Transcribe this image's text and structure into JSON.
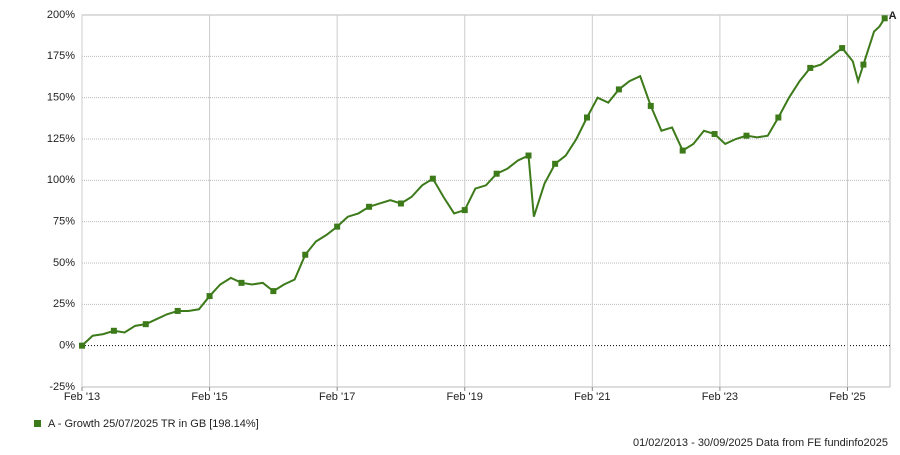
{
  "chart_data": {
    "type": "line",
    "x": [
      "2013-02",
      "2013-04",
      "2013-06",
      "2013-08",
      "2013-10",
      "2013-12",
      "2014-02",
      "2014-04",
      "2014-06",
      "2014-08",
      "2014-10",
      "2014-12",
      "2015-02",
      "2015-04",
      "2015-06",
      "2015-08",
      "2015-10",
      "2015-12",
      "2016-02",
      "2016-04",
      "2016-06",
      "2016-08",
      "2016-10",
      "2016-12",
      "2017-02",
      "2017-04",
      "2017-06",
      "2017-08",
      "2017-10",
      "2017-12",
      "2018-02",
      "2018-04",
      "2018-06",
      "2018-08",
      "2018-10",
      "2018-12",
      "2019-02",
      "2019-04",
      "2019-06",
      "2019-08",
      "2019-10",
      "2019-12",
      "2020-02",
      "2020-03",
      "2020-05",
      "2020-07",
      "2020-09",
      "2020-11",
      "2021-01",
      "2021-03",
      "2021-05",
      "2021-07",
      "2021-09",
      "2021-11",
      "2022-01",
      "2022-03",
      "2022-05",
      "2022-07",
      "2022-09",
      "2022-11",
      "2023-01",
      "2023-03",
      "2023-05",
      "2023-07",
      "2023-09",
      "2023-11",
      "2024-01",
      "2024-03",
      "2024-05",
      "2024-07",
      "2024-09",
      "2024-11",
      "2025-01",
      "2025-03",
      "2025-04",
      "2025-05",
      "2025-07",
      "2025-08",
      "2025-09"
    ],
    "series": [
      {
        "name": "A - Growth 25/07/2025 TR in GB [198.14%]",
        "label": "A",
        "color": "#3d7a1a",
        "values": [
          0,
          6,
          7,
          9,
          8,
          12,
          13,
          16,
          19,
          21,
          21,
          22,
          30,
          37,
          41,
          38,
          37,
          38,
          33,
          37,
          40,
          55,
          63,
          67,
          72,
          78,
          80,
          84,
          86,
          88,
          86,
          90,
          97,
          101,
          90,
          80,
          82,
          95,
          97,
          104,
          107,
          112,
          115,
          78,
          98,
          110,
          115,
          125,
          138,
          150,
          147,
          155,
          160,
          163,
          145,
          130,
          132,
          118,
          122,
          130,
          128,
          122,
          125,
          127,
          126,
          127,
          138,
          150,
          160,
          168,
          170,
          175,
          180,
          172,
          160,
          170,
          190,
          193,
          198
        ]
      }
    ],
    "xlim": [
      "2013-02",
      "2025-10"
    ],
    "xticks": [
      {
        "value": "2013-02",
        "label": "Feb '13"
      },
      {
        "value": "2015-02",
        "label": "Feb '15"
      },
      {
        "value": "2017-02",
        "label": "Feb '17"
      },
      {
        "value": "2019-02",
        "label": "Feb '19"
      },
      {
        "value": "2021-02",
        "label": "Feb '21"
      },
      {
        "value": "2023-02",
        "label": "Feb '23"
      },
      {
        "value": "2025-02",
        "label": "Feb '25"
      }
    ],
    "ylim": [
      -25,
      200
    ],
    "yticks": [
      {
        "value": -25,
        "label": "-25%"
      },
      {
        "value": 0,
        "label": "0%"
      },
      {
        "value": 25,
        "label": "25%"
      },
      {
        "value": 50,
        "label": "50%"
      },
      {
        "value": 75,
        "label": "75%"
      },
      {
        "value": 100,
        "label": "100%"
      },
      {
        "value": 125,
        "label": "125%"
      },
      {
        "value": 150,
        "label": "150%"
      },
      {
        "value": 175,
        "label": "175%"
      },
      {
        "value": 200,
        "label": "200%"
      }
    ],
    "grid": true,
    "footer": "01/02/2013 - 30/09/2025 Data from FE fundinfo2025"
  }
}
